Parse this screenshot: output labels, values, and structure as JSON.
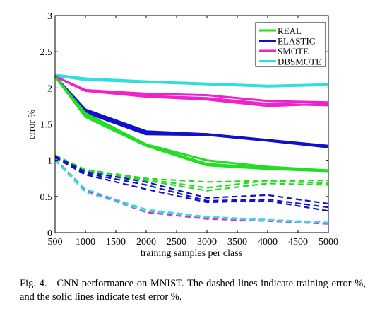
{
  "chart_data": {
    "type": "line",
    "title": "",
    "xlabel": "training samples per class",
    "ylabel": "error %",
    "xlim": [
      500,
      5000
    ],
    "ylim": [
      0,
      3
    ],
    "xticks": [
      500,
      1000,
      1500,
      2000,
      2500,
      3000,
      3500,
      4000,
      4500,
      5000
    ],
    "yticks": [
      0,
      0.5,
      1,
      1.5,
      2,
      2.5,
      3
    ],
    "ytick_labels": [
      "0",
      "0.5",
      "1",
      "1.5",
      "2",
      "2.5",
      "3"
    ],
    "grid": false,
    "legend_position": "top-right",
    "legend": [
      {
        "name": "REAL",
        "color": "#22dd22"
      },
      {
        "name": "ELASTIC",
        "color": "#1010cc"
      },
      {
        "name": "SMOTE",
        "color": "#ee22cc"
      },
      {
        "name": "DBSMOTE",
        "color": "#33dddd"
      }
    ],
    "x": [
      500,
      1000,
      2000,
      3000,
      4000,
      5000
    ],
    "series": [
      {
        "legend_index": 3,
        "style": "solid",
        "values": [
          2.18,
          2.13,
          2.09,
          2.06,
          2.03,
          2.05
        ]
      },
      {
        "legend_index": 3,
        "style": "solid",
        "values": [
          2.17,
          2.11,
          2.08,
          2.05,
          2.02,
          2.04
        ]
      },
      {
        "legend_index": 2,
        "style": "solid",
        "values": [
          2.16,
          1.97,
          1.92,
          1.9,
          1.82,
          1.8
        ]
      },
      {
        "legend_index": 2,
        "style": "solid",
        "values": [
          2.16,
          1.96,
          1.89,
          1.86,
          1.78,
          1.76
        ]
      },
      {
        "legend_index": 2,
        "style": "solid",
        "values": [
          2.16,
          1.96,
          1.88,
          1.84,
          1.75,
          1.78
        ]
      },
      {
        "legend_index": 1,
        "style": "solid",
        "values": [
          2.16,
          1.7,
          1.4,
          1.36,
          1.28,
          1.2
        ]
      },
      {
        "legend_index": 1,
        "style": "solid",
        "values": [
          2.16,
          1.68,
          1.38,
          1.36,
          1.28,
          1.19
        ]
      },
      {
        "legend_index": 1,
        "style": "solid",
        "values": [
          2.16,
          1.66,
          1.36,
          1.35,
          1.27,
          1.18
        ]
      },
      {
        "legend_index": 0,
        "style": "solid",
        "values": [
          2.16,
          1.65,
          1.22,
          1.0,
          0.91,
          0.86
        ]
      },
      {
        "legend_index": 0,
        "style": "solid",
        "values": [
          2.16,
          1.62,
          1.21,
          0.95,
          0.89,
          0.86
        ]
      },
      {
        "legend_index": 0,
        "style": "solid",
        "values": [
          2.16,
          1.6,
          1.2,
          0.93,
          0.88,
          0.85
        ]
      },
      {
        "legend_index": 0,
        "style": "dashed",
        "values": [
          1.07,
          0.87,
          0.75,
          0.7,
          0.72,
          0.72
        ]
      },
      {
        "legend_index": 0,
        "style": "dashed",
        "values": [
          1.05,
          0.86,
          0.74,
          0.62,
          0.72,
          0.68
        ]
      },
      {
        "legend_index": 0,
        "style": "dashed",
        "values": [
          1.04,
          0.84,
          0.72,
          0.58,
          0.68,
          0.66
        ]
      },
      {
        "legend_index": 1,
        "style": "dashed",
        "values": [
          1.06,
          0.84,
          0.7,
          0.48,
          0.52,
          0.4
        ]
      },
      {
        "legend_index": 1,
        "style": "dashed",
        "values": [
          1.05,
          0.82,
          0.66,
          0.44,
          0.46,
          0.35
        ]
      },
      {
        "legend_index": 1,
        "style": "dashed",
        "values": [
          1.04,
          0.8,
          0.6,
          0.42,
          0.44,
          0.3
        ]
      },
      {
        "legend_index": 2,
        "style": "dashed",
        "values": [
          1.02,
          0.6,
          0.3,
          0.2,
          0.17,
          0.13
        ]
      },
      {
        "legend_index": 2,
        "style": "dashed",
        "values": [
          1.01,
          0.58,
          0.28,
          0.19,
          0.16,
          0.12
        ]
      },
      {
        "legend_index": 3,
        "style": "dashed",
        "values": [
          1.01,
          0.6,
          0.32,
          0.22,
          0.18,
          0.14
        ]
      },
      {
        "legend_index": 3,
        "style": "dashed",
        "values": [
          1.0,
          0.56,
          0.3,
          0.21,
          0.17,
          0.13
        ]
      }
    ]
  },
  "caption": {
    "label": "Fig. 4.",
    "text": "CNN performance on MNIST. The dashed lines indicate training error %, and the solid lines indicate test error %."
  }
}
